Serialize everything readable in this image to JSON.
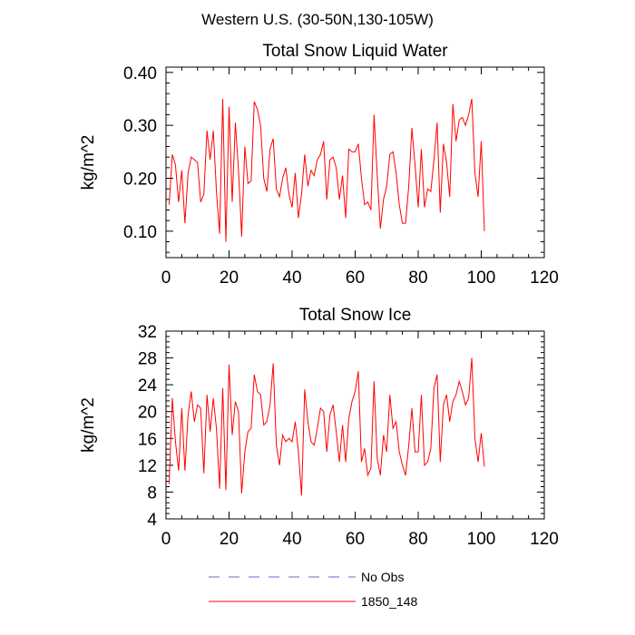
{
  "page": {
    "title": "Western U.S. (30-50N,130-105W)"
  },
  "colors": {
    "series_line": "#ff0000",
    "no_obs_line": "#6666cc",
    "axis": "#000000"
  },
  "legend": {
    "entries": [
      {
        "label": "No Obs",
        "style": "dashed",
        "color": "#6666cc"
      },
      {
        "label": "1850_148",
        "style": "solid",
        "color": "#ff0000"
      }
    ]
  },
  "chart_data": [
    {
      "type": "line",
      "title": "Total Snow Liquid Water",
      "xlabel": "",
      "ylabel": "kg/m^2",
      "xlim": [
        0,
        120
      ],
      "ylim": [
        0.05,
        0.41
      ],
      "xticks": [
        0,
        20,
        40,
        60,
        80,
        100,
        120
      ],
      "xtick_labels": [
        "0",
        "20",
        "40",
        "60",
        "80",
        "100",
        "120"
      ],
      "yticks": [
        0.1,
        0.2,
        0.3,
        0.4
      ],
      "ytick_labels": [
        "0.10",
        "0.20",
        "0.30",
        "0.40"
      ],
      "grid": false,
      "series": [
        {
          "name": "1850_148",
          "x_start": 1,
          "values": [
            0.15,
            0.245,
            0.225,
            0.155,
            0.215,
            0.115,
            0.21,
            0.24,
            0.235,
            0.23,
            0.155,
            0.17,
            0.29,
            0.235,
            0.29,
            0.175,
            0.095,
            0.35,
            0.08,
            0.335,
            0.155,
            0.305,
            0.215,
            0.09,
            0.26,
            0.19,
            0.195,
            0.345,
            0.33,
            0.3,
            0.2,
            0.175,
            0.255,
            0.275,
            0.18,
            0.165,
            0.2,
            0.22,
            0.17,
            0.145,
            0.21,
            0.125,
            0.17,
            0.245,
            0.185,
            0.215,
            0.205,
            0.235,
            0.245,
            0.27,
            0.16,
            0.235,
            0.24,
            0.22,
            0.16,
            0.205,
            0.125,
            0.255,
            0.25,
            0.25,
            0.265,
            0.2,
            0.15,
            0.155,
            0.14,
            0.32,
            0.205,
            0.105,
            0.16,
            0.185,
            0.245,
            0.25,
            0.21,
            0.15,
            0.115,
            0.115,
            0.185,
            0.295,
            0.225,
            0.145,
            0.255,
            0.145,
            0.18,
            0.175,
            0.235,
            0.305,
            0.135,
            0.265,
            0.23,
            0.165,
            0.34,
            0.27,
            0.31,
            0.315,
            0.3,
            0.32,
            0.35,
            0.21,
            0.165,
            0.27,
            0.1
          ]
        }
      ]
    },
    {
      "type": "line",
      "title": "Total Snow Ice",
      "xlabel": "",
      "ylabel": "kg/m^2",
      "xlim": [
        0,
        120
      ],
      "ylim": [
        4,
        32
      ],
      "xticks": [
        0,
        20,
        40,
        60,
        80,
        100,
        120
      ],
      "xtick_labels": [
        "0",
        "20",
        "40",
        "60",
        "80",
        "100",
        "120"
      ],
      "yticks": [
        4,
        8,
        12,
        16,
        20,
        24,
        28,
        32
      ],
      "ytick_labels": [
        "4",
        "8",
        "12",
        "16",
        "20",
        "24",
        "28",
        "32"
      ],
      "grid": false,
      "series": [
        {
          "name": "1850_148",
          "x_start": 1,
          "values": [
            9.2,
            22.0,
            15.5,
            11.2,
            20.5,
            11.2,
            19.5,
            23.0,
            18.5,
            21.0,
            20.5,
            10.8,
            22.5,
            17.0,
            22.0,
            17.5,
            8.5,
            23.5,
            8.3,
            27.0,
            16.5,
            21.5,
            20.0,
            7.8,
            14.0,
            17.0,
            17.5,
            25.5,
            23.0,
            22.5,
            18.0,
            18.5,
            21.0,
            27.2,
            15.0,
            12.0,
            16.5,
            15.5,
            16.0,
            15.5,
            18.5,
            14.0,
            7.5,
            23.3,
            18.5,
            15.5,
            15.0,
            17.5,
            20.5,
            20.0,
            14.0,
            19.5,
            21.0,
            17.0,
            12.5,
            18.0,
            12.5,
            19.0,
            21.5,
            23.0,
            26.0,
            12.5,
            14.5,
            10.5,
            11.5,
            24.5,
            13.0,
            10.5,
            16.5,
            14.0,
            22.5,
            17.5,
            18.5,
            14.0,
            12.0,
            10.5,
            15.0,
            20.5,
            14.0,
            14.0,
            22.5,
            12.0,
            12.5,
            14.5,
            23.5,
            25.5,
            12.5,
            21.0,
            22.5,
            18.5,
            21.5,
            22.5,
            24.5,
            23.0,
            21.0,
            22.0,
            28.0,
            16.0,
            12.5,
            16.8,
            11.8
          ]
        }
      ]
    }
  ]
}
